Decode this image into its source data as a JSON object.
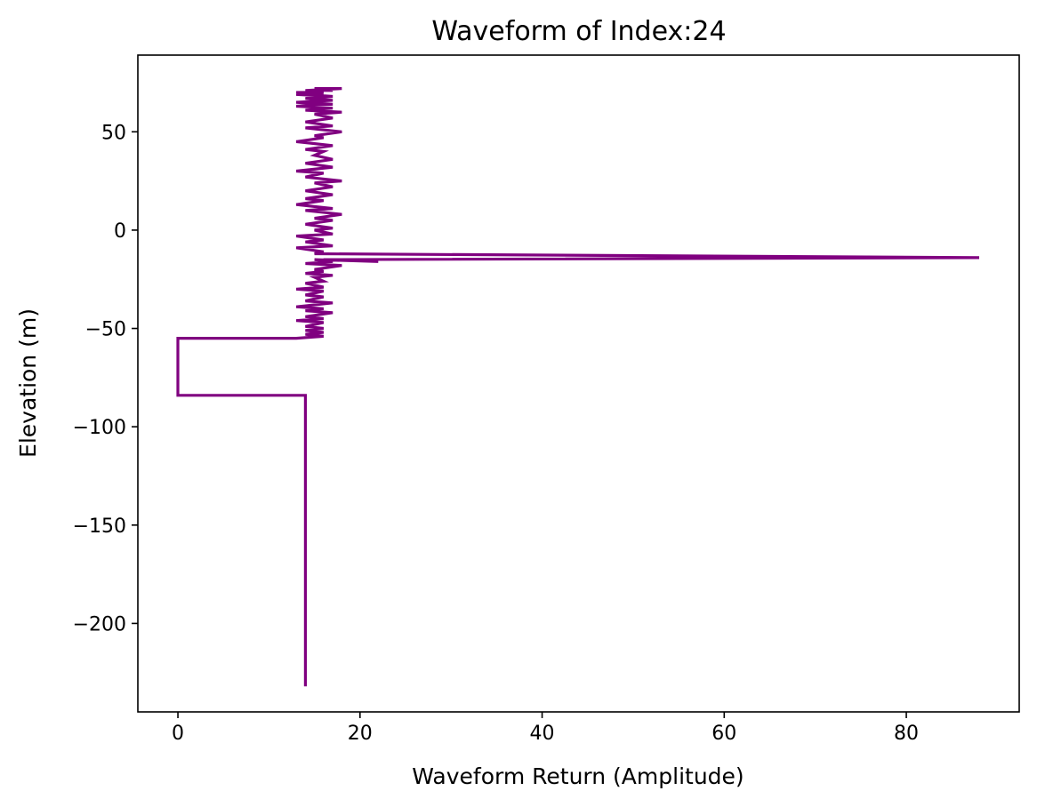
{
  "chart_data": {
    "type": "line",
    "title": "Waveform of Index:24",
    "xlabel": "Waveform Return (Amplitude)",
    "ylabel": "Elevation (m)",
    "xlim": [
      -4.4,
      92.4
    ],
    "ylim": [
      -245,
      89
    ],
    "xticks": [
      0,
      20,
      40,
      60,
      80
    ],
    "xtick_labels": [
      "0",
      "20",
      "40",
      "60",
      "80"
    ],
    "yticks": [
      50,
      0,
      -50,
      -100,
      -150,
      -200
    ],
    "ytick_labels": [
      "50",
      "0",
      "−50",
      "−100",
      "−150",
      "−200"
    ],
    "grid": false,
    "series": [
      {
        "color": "#800080",
        "x": [
          14,
          14,
          0,
          0,
          13,
          16,
          14,
          16,
          14,
          16,
          14,
          16,
          13,
          16,
          14,
          17,
          14,
          16,
          13,
          17,
          14,
          16,
          14,
          16,
          13,
          16,
          14,
          16,
          15,
          17,
          14,
          16,
          15,
          18,
          14,
          17,
          15,
          22,
          16,
          88,
          15,
          16,
          13,
          17,
          14,
          16,
          13,
          17,
          15,
          17,
          14,
          17,
          15,
          18,
          14,
          17,
          13,
          16,
          14,
          17,
          14,
          17,
          15,
          18,
          14,
          16,
          13,
          17,
          14,
          17,
          15,
          16,
          14,
          17,
          13,
          16,
          15,
          18,
          14,
          17,
          14,
          17,
          15,
          18,
          14,
          17,
          13,
          17,
          14,
          16,
          14,
          17,
          13,
          16,
          14,
          18,
          15,
          17,
          14,
          16,
          13,
          16,
          14,
          17,
          14,
          17,
          13,
          16,
          14,
          16
        ],
        "y": [
          -232,
          -84,
          -84,
          -55,
          -55,
          -54,
          -53,
          -52,
          -51,
          -50,
          -49,
          -47,
          -46,
          -45,
          -44,
          -42,
          -41,
          -40,
          -39,
          -37,
          -36,
          -34,
          -33,
          -31,
          -30,
          -29,
          -27,
          -26,
          -24,
          -23,
          -22,
          -21,
          -20,
          -18,
          -17,
          -16,
          -15,
          -16,
          -15,
          -14,
          -12,
          -11,
          -9,
          -8,
          -6,
          -5,
          -3,
          -2,
          0,
          1,
          3,
          5,
          6,
          8,
          10,
          11,
          13,
          15,
          16,
          18,
          20,
          22,
          24,
          25,
          27,
          29,
          30,
          32,
          34,
          36,
          38,
          40,
          41,
          43,
          45,
          47,
          48,
          50,
          52,
          53,
          55,
          57,
          59,
          60,
          61,
          62,
          63,
          64,
          65,
          66,
          67,
          68,
          69,
          70,
          71,
          72,
          72,
          71,
          71,
          70,
          70,
          69,
          69,
          68,
          67,
          66,
          65,
          64,
          63,
          62
        ]
      }
    ]
  }
}
